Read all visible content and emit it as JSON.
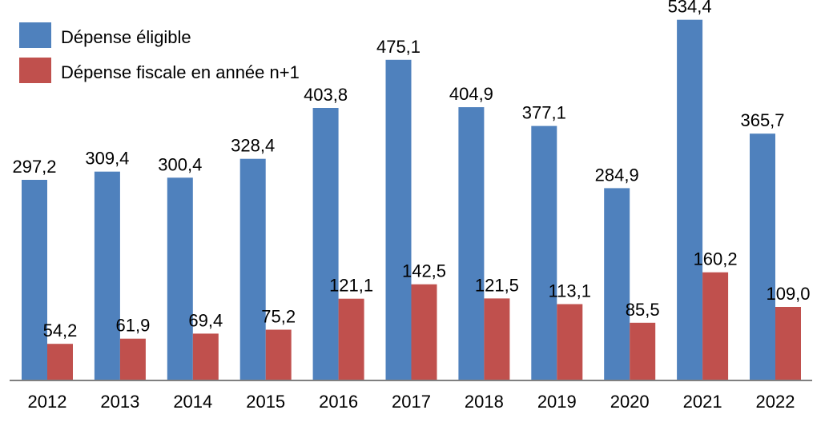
{
  "chart_data": {
    "type": "bar",
    "categories": [
      "2012",
      "2013",
      "2014",
      "2015",
      "2016",
      "2017",
      "2018",
      "2019",
      "2020",
      "2021",
      "2022"
    ],
    "series": [
      {
        "name": "Dépense éligible",
        "color": "#4f81bd",
        "values": [
          297.2,
          309.4,
          300.4,
          328.4,
          403.8,
          475.1,
          404.9,
          377.1,
          284.9,
          534.4,
          365.7
        ],
        "labels": [
          "297,2",
          "309,4",
          "300,4",
          "328,4",
          "403,8",
          "475,1",
          "404,9",
          "377,1",
          "284,9",
          "534,4",
          "365,7"
        ]
      },
      {
        "name": "Dépense fiscale en année n+1",
        "color": "#c0504d",
        "values": [
          54.2,
          61.9,
          69.4,
          75.2,
          121.1,
          142.5,
          121.5,
          113.1,
          85.5,
          160.2,
          109.0
        ],
        "labels": [
          "54,2",
          "61,9",
          "69,4",
          "75,2",
          "121,1",
          "142,5",
          "121,5",
          "113,1",
          "85,5",
          "160,2",
          "109,0"
        ]
      }
    ],
    "ylim": [
      0,
      540
    ],
    "grid": false,
    "legend_position": "top-left",
    "axis_color": "#808080"
  }
}
